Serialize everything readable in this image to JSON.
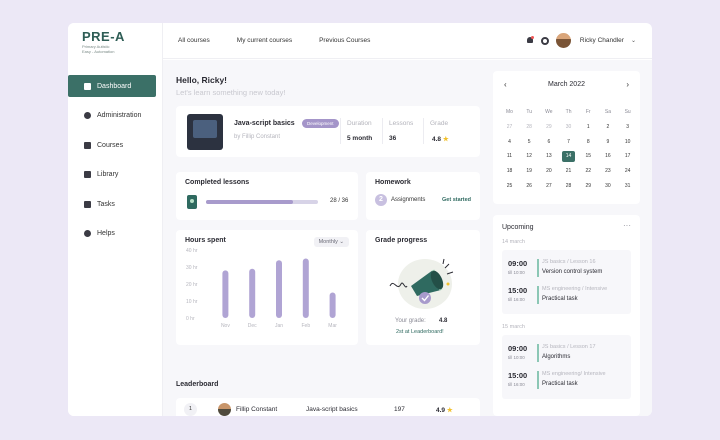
{
  "brand": {
    "title": "PRE-A",
    "subtitle_line1": "Primary Autistic",
    "subtitle_line2": "Easy - Automation"
  },
  "sidebar": {
    "items": [
      {
        "label": "Dashboard",
        "icon": "grid-icon",
        "active": true
      },
      {
        "label": "Administration",
        "icon": "user-icon"
      },
      {
        "label": "Courses",
        "icon": "folder-icon"
      },
      {
        "label": "Library",
        "icon": "book-icon"
      },
      {
        "label": "Tasks",
        "icon": "briefcase-icon"
      },
      {
        "label": "Helps",
        "icon": "help-icon"
      }
    ]
  },
  "topnav": {
    "links": [
      "All courses",
      "My current courses",
      "Previous Courses"
    ],
    "user": "Ricky Chandler"
  },
  "greeting": {
    "title": "Hello, Ricky!",
    "subtitle": "Let's learn something new today!"
  },
  "course": {
    "name": "Java-script basics",
    "tag": "Development",
    "author": "by Fillip Constant",
    "duration_label": "Duration",
    "duration": "5 month",
    "lessons_label": "Lessons",
    "lessons": "36",
    "grade_label": "Grade",
    "grade": "4.8"
  },
  "completed": {
    "title": "Completed lessons",
    "done": 28,
    "total": 36,
    "count_text": "28 / 36"
  },
  "homework": {
    "title": "Homework",
    "count": "2",
    "label": "Assignments",
    "link": "Get started"
  },
  "hours": {
    "title": "Hours spent",
    "filter": "Monthly"
  },
  "chart_data": {
    "type": "bar",
    "title": "Hours spent",
    "categories": [
      "Nov",
      "Dec",
      "Jan",
      "Feb",
      "Mar"
    ],
    "values": [
      28,
      29,
      34,
      35,
      15
    ],
    "ylim": [
      0,
      40
    ],
    "yticks": [
      "0 hr",
      "10 hr",
      "20 hr",
      "30 hr",
      "40 hr"
    ],
    "color": "#b0a4d4",
    "grid": false
  },
  "grade_progress": {
    "title": "Grade progress",
    "label": "Your grade:",
    "value": "4.8",
    "link": "2st at Leaderboard!"
  },
  "leaderboard": {
    "title": "Leaderboard",
    "rows": [
      {
        "rank": "1",
        "name": "Fillip Constant",
        "course": "Java-script basics",
        "score": "197",
        "grade": "4.9"
      }
    ]
  },
  "calendar": {
    "month": "March 2022",
    "dows": [
      "Mo",
      "Tu",
      "We",
      "Th",
      "Fr",
      "Sa",
      "Su"
    ],
    "weeks": [
      [
        "27",
        "28",
        "29",
        "30",
        "1",
        "2",
        "3"
      ],
      [
        "4",
        "5",
        "6",
        "7",
        "8",
        "9",
        "10"
      ],
      [
        "11",
        "12",
        "13",
        "14",
        "15",
        "16",
        "17"
      ],
      [
        "18",
        "19",
        "20",
        "21",
        "22",
        "23",
        "24"
      ],
      [
        "25",
        "26",
        "27",
        "28",
        "29",
        "30",
        "31"
      ]
    ],
    "today": "14"
  },
  "upcoming": {
    "title": "Upcoming",
    "groups": [
      {
        "date": "14 march",
        "items": [
          {
            "time": "09:00",
            "tz": "till 10:00",
            "sub": "JS basics / Lesson 16",
            "text": "Version control system"
          },
          {
            "time": "15:00",
            "tz": "till 16:00",
            "sub": "MS engineering / Intensive",
            "text": "Practical task"
          }
        ]
      },
      {
        "date": "15 march",
        "items": [
          {
            "time": "09:00",
            "tz": "till 10:00",
            "sub": "JS basics / Lesson 17",
            "text": "Algorithms"
          },
          {
            "time": "15:00",
            "tz": "till 16:00",
            "sub": "MS engineering/ Intensive",
            "text": "Practical task"
          }
        ]
      }
    ]
  }
}
